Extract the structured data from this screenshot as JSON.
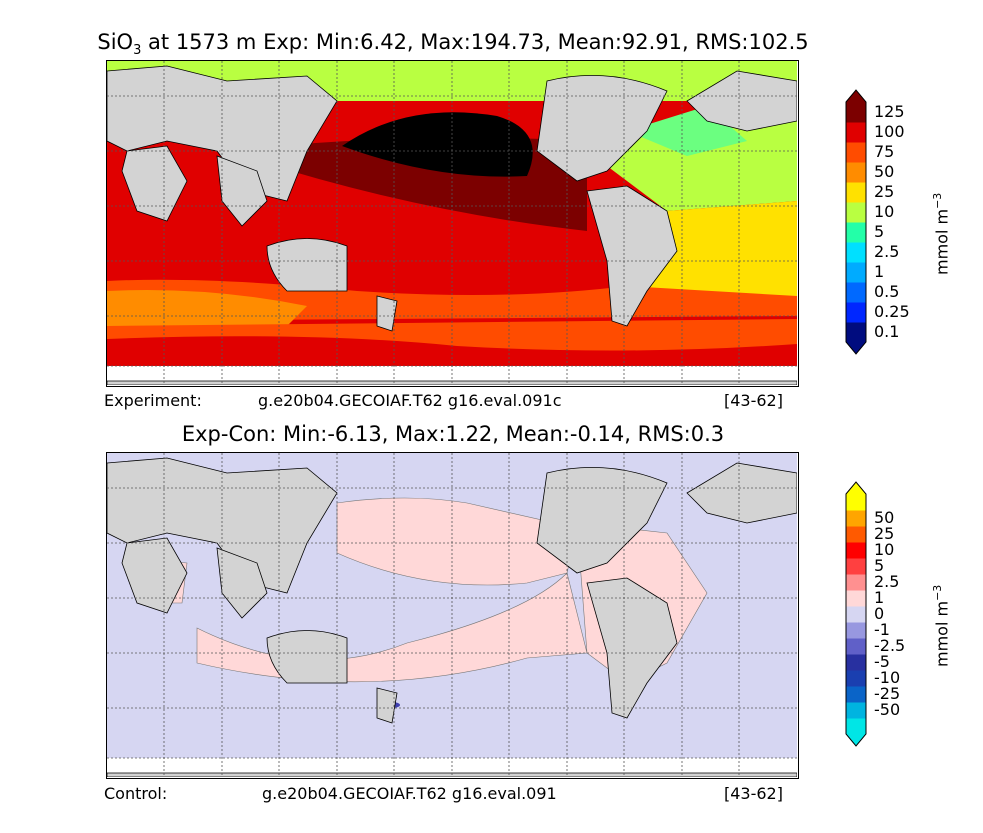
{
  "panel1": {
    "title_prefix": "SiO",
    "title_sub": "3",
    "title_rest": " at 1573 m Exp: Min:6.42, Max:194.73, Mean:92.91, RMS:102.5",
    "footer_left": "Experiment:",
    "footer_mid": "g.e20b04.GECOIAF.T62 g16.eval.091c",
    "footer_right": "[43-62]",
    "unit_main": "mmol m",
    "unit_exp": "−3",
    "colorbar_ticks": [
      "125",
      "100",
      "75",
      "50",
      "25",
      "10",
      "5",
      "2.5",
      "1",
      "0.5",
      "0.25",
      "0.1"
    ],
    "colorbar_colors": [
      "#000c7f",
      "#0027ff",
      "#0069ff",
      "#00abff",
      "#00e0ff",
      "#23ffa8",
      "#b9ff41",
      "#ffe100",
      "#ff8c00",
      "#ff4c00",
      "#e00000",
      "#7c0000"
    ]
  },
  "panel2": {
    "title": "Exp-Con: Min:-6.13, Max:1.22, Mean:-0.14, RMS:0.3",
    "footer_left": "Control:",
    "footer_mid": "g.e20b04.GECOIAF.T62 g16.eval.091",
    "footer_right": "[43-62]",
    "unit_main": "mmol m",
    "unit_exp": "−3",
    "colorbar_ticks": [
      "50",
      "25",
      "10",
      "5",
      "2.5",
      "1",
      "0",
      "-1",
      "-2.5",
      "-5",
      "-10",
      "-25",
      "-50"
    ],
    "colorbar_colors": [
      "#00e6e6",
      "#00b4e0",
      "#0a64c8",
      "#1a3fb0",
      "#2830a0",
      "#6060c8",
      "#9898e0",
      "#d6d6f2",
      "#ffd8d8",
      "#ff9090",
      "#ff4040",
      "#ff0000",
      "#ff5a00",
      "#ffa500",
      "#ffff00"
    ]
  },
  "colors": {
    "land": "#d3d3d3",
    "ice": "#ffffff",
    "grid": "#555555"
  }
}
